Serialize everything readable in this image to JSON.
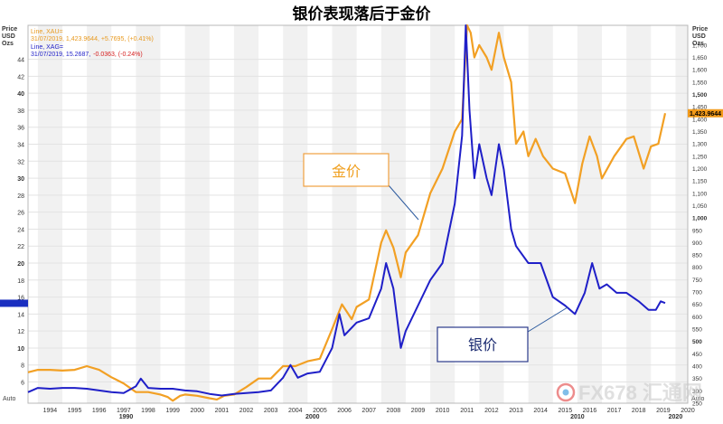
{
  "chart_data": {
    "type": "line",
    "title": "银价表现落后于金价",
    "left_axis": {
      "header": [
        "Price",
        "USD",
        "Ozs"
      ],
      "ticks": [
        6,
        8,
        10,
        12,
        14,
        16,
        18,
        20,
        22,
        24,
        26,
        28,
        30,
        32,
        34,
        36,
        38,
        40,
        42,
        44
      ],
      "range": [
        3.5,
        48
      ],
      "auto_label": "Auto",
      "current": 15.2687
    },
    "right_axis": {
      "header": [
        "Price",
        "USD",
        "Ozs"
      ],
      "ticks": [
        250,
        300,
        350,
        400,
        450,
        500,
        550,
        600,
        650,
        700,
        750,
        800,
        850,
        900,
        950,
        1000,
        1050,
        1100,
        1150,
        1200,
        1250,
        1300,
        1350,
        1400,
        1450,
        1500,
        1550,
        1600,
        1650,
        1700
      ],
      "range": [
        250,
        1780
      ],
      "auto_label": "Auto",
      "current_label": "1,423.9644",
      "current": 1423.9644
    },
    "x_axis": {
      "years": [
        "1994",
        "1995",
        "1996",
        "1997",
        "1998",
        "1999",
        "2000",
        "2001",
        "2002",
        "2003",
        "2004",
        "2005",
        "2006",
        "2007",
        "2008",
        "2009",
        "2010",
        "2011",
        "2012",
        "2013",
        "2014",
        "2015",
        "2016",
        "2017",
        "2018",
        "2019",
        "2020"
      ],
      "decades": [
        "1990",
        "2000",
        "2010",
        "2020"
      ],
      "range": [
        1993.6,
        2020.5
      ]
    },
    "legend": {
      "gold_line": "Line, XAU=",
      "gold_value": "31/07/2019, 1,423.9644, +5.7695, (+0.41%)",
      "silver_line": "Line, XAG=",
      "silver_date": "31/07/2019, 15.2687,",
      "silver_change": "-0.0363, (-0.24%)"
    },
    "series": [
      {
        "name": "金价",
        "axis": "right",
        "color": "#f2a024",
        "x": [
          1993.6,
          1994.0,
          1994.5,
          1995.0,
          1995.5,
          1996.0,
          1996.5,
          1997.0,
          1997.5,
          1998.0,
          1998.5,
          1999.0,
          1999.3,
          1999.5,
          1999.8,
          2000.0,
          2000.5,
          2001.0,
          2001.3,
          2001.6,
          2002.0,
          2002.5,
          2003.0,
          2003.5,
          2004.0,
          2004.5,
          2005.0,
          2005.5,
          2006.0,
          2006.4,
          2006.8,
          2007.0,
          2007.5,
          2008.0,
          2008.2,
          2008.5,
          2008.8,
          2009.0,
          2009.5,
          2010.0,
          2010.5,
          2011.0,
          2011.3,
          2011.5,
          2011.65,
          2011.8,
          2012.0,
          2012.3,
          2012.5,
          2012.8,
          2013.0,
          2013.3,
          2013.5,
          2013.8,
          2014.0,
          2014.3,
          2014.6,
          2015.0,
          2015.5,
          2015.9,
          2016.2,
          2016.5,
          2016.8,
          2017.0,
          2017.5,
          2018.0,
          2018.3,
          2018.7,
          2019.0,
          2019.3,
          2019.58
        ],
        "values": [
          375,
          385,
          385,
          382,
          385,
          400,
          385,
          355,
          330,
          295,
          295,
          285,
          275,
          260,
          280,
          285,
          280,
          270,
          265,
          280,
          285,
          315,
          350,
          350,
          400,
          400,
          420,
          430,
          550,
          650,
          590,
          640,
          670,
          900,
          950,
          880,
          760,
          860,
          930,
          1100,
          1200,
          1350,
          1400,
          1800,
          1750,
          1650,
          1700,
          1650,
          1600,
          1750,
          1650,
          1550,
          1300,
          1350,
          1250,
          1320,
          1250,
          1200,
          1180,
          1060,
          1220,
          1330,
          1250,
          1160,
          1250,
          1320,
          1330,
          1200,
          1290,
          1300,
          1424
        ]
      },
      {
        "name": "银价",
        "axis": "left",
        "color": "#1f1fc8",
        "x": [
          1993.6,
          1994.0,
          1994.5,
          1995.0,
          1995.5,
          1996.0,
          1996.5,
          1997.0,
          1997.5,
          1998.0,
          1998.2,
          1998.5,
          1999.0,
          1999.5,
          2000.0,
          2000.5,
          2001.0,
          2001.5,
          2002.0,
          2002.5,
          2003.0,
          2003.5,
          2004.0,
          2004.3,
          2004.6,
          2005.0,
          2005.5,
          2006.0,
          2006.3,
          2006.5,
          2007.0,
          2007.5,
          2008.0,
          2008.2,
          2008.5,
          2008.8,
          2009.0,
          2009.5,
          2010.0,
          2010.5,
          2011.0,
          2011.3,
          2011.45,
          2011.6,
          2011.8,
          2012.0,
          2012.3,
          2012.5,
          2012.8,
          2013.0,
          2013.3,
          2013.5,
          2014.0,
          2014.5,
          2015.0,
          2015.5,
          2015.9,
          2016.3,
          2016.6,
          2016.9,
          2017.2,
          2017.6,
          2018.0,
          2018.5,
          2018.9,
          2019.2,
          2019.4,
          2019.58
        ],
        "values": [
          4.8,
          5.3,
          5.2,
          5.3,
          5.3,
          5.2,
          5.0,
          4.8,
          4.7,
          5.5,
          6.4,
          5.3,
          5.2,
          5.2,
          5.0,
          4.9,
          4.6,
          4.4,
          4.6,
          4.7,
          4.8,
          5.0,
          6.5,
          8.0,
          6.5,
          7.0,
          7.2,
          10.0,
          14.0,
          11.5,
          13.0,
          13.5,
          17.0,
          20.0,
          17.0,
          10.0,
          12.0,
          15.0,
          18.0,
          20.0,
          27.0,
          35.0,
          48.0,
          38.0,
          30.0,
          34.0,
          30.0,
          28.0,
          34.0,
          31.0,
          24.0,
          22.0,
          20.0,
          20.0,
          16.0,
          15.0,
          14.0,
          16.5,
          20.0,
          17.0,
          17.5,
          16.5,
          16.5,
          15.5,
          14.5,
          14.5,
          15.5,
          15.3
        ]
      }
    ],
    "annotations": {
      "gold_label": "金价",
      "silver_label": "银价",
      "watermark": "FX678 汇通网"
    }
  }
}
